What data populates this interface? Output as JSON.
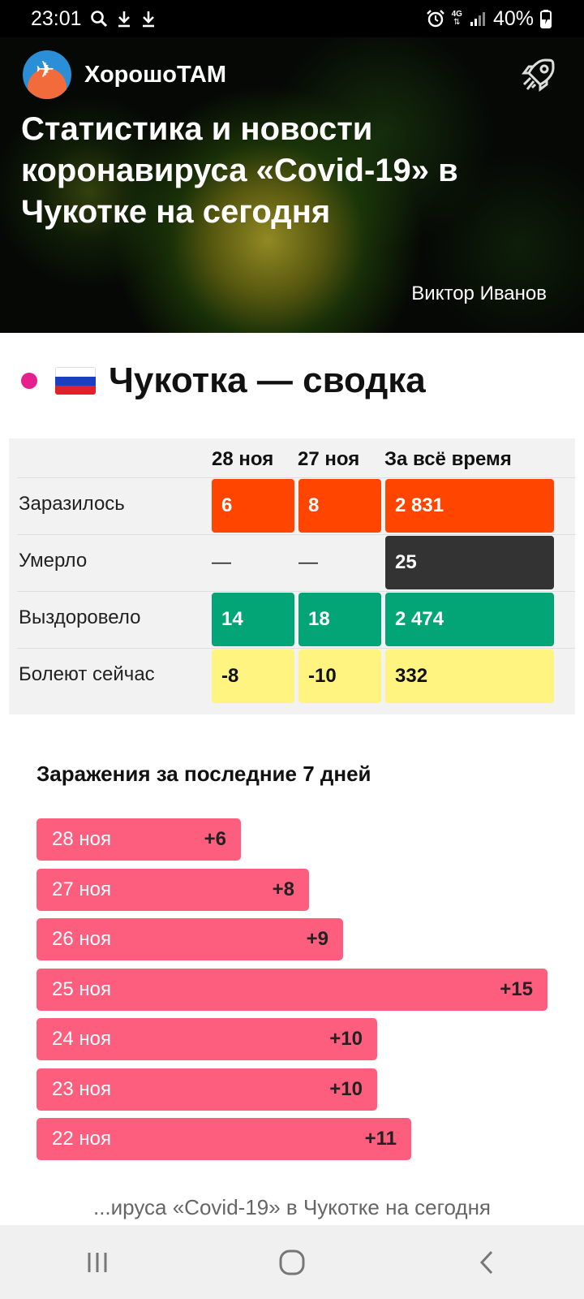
{
  "status_bar": {
    "time": "23:01",
    "left_icons": [
      "search-icon",
      "download-icon",
      "download-icon"
    ],
    "right_icons": [
      "alarm-icon",
      "4g-icon",
      "signal-icon"
    ],
    "network": "4G",
    "battery": "40%"
  },
  "header": {
    "site_name": "ХорошоТАМ",
    "title": "Статистика и новости коронавируса «Covid-19» в Чукотке на сегодня",
    "author": "Виктор Иванов"
  },
  "summary": {
    "title": "Чукотка — сводка",
    "colors": {
      "infected": "#ff4500",
      "deaths": "#333333",
      "recovered": "#03a577",
      "active": "#fff47f",
      "dot": "#e61f8c"
    },
    "columns": [
      "28 ноя",
      "27 ноя",
      "За всё время"
    ],
    "rows": [
      {
        "label": "Заразилось",
        "values": [
          "6",
          "8",
          "2 831"
        ]
      },
      {
        "label": "Умерло",
        "values": [
          "—",
          "—",
          "25"
        ]
      },
      {
        "label": "Выздоровело",
        "values": [
          "14",
          "18",
          "2 474"
        ]
      },
      {
        "label": "Болеют сейчас",
        "values": [
          "-8",
          "-10",
          "332"
        ]
      }
    ]
  },
  "chart_data": {
    "type": "bar",
    "orientation": "horizontal",
    "title": "Заражения за последние 7 дней",
    "categories": [
      "28 ноя",
      "27 ноя",
      "26 ноя",
      "25 ноя",
      "24 ноя",
      "23 ноя",
      "22 ноя"
    ],
    "values": [
      6,
      8,
      9,
      15,
      10,
      10,
      11
    ],
    "value_labels": [
      "+6",
      "+8",
      "+9",
      "+15",
      "+10",
      "+10",
      "+11"
    ],
    "bar_color": "#fd5e7d",
    "xlim": [
      0,
      15
    ]
  },
  "bottom_caption": "...ируса «Covid-19» в Чукотке на сегодня",
  "nav_bar": {
    "buttons": [
      "recent-apps-icon",
      "home-icon",
      "back-icon"
    ]
  }
}
